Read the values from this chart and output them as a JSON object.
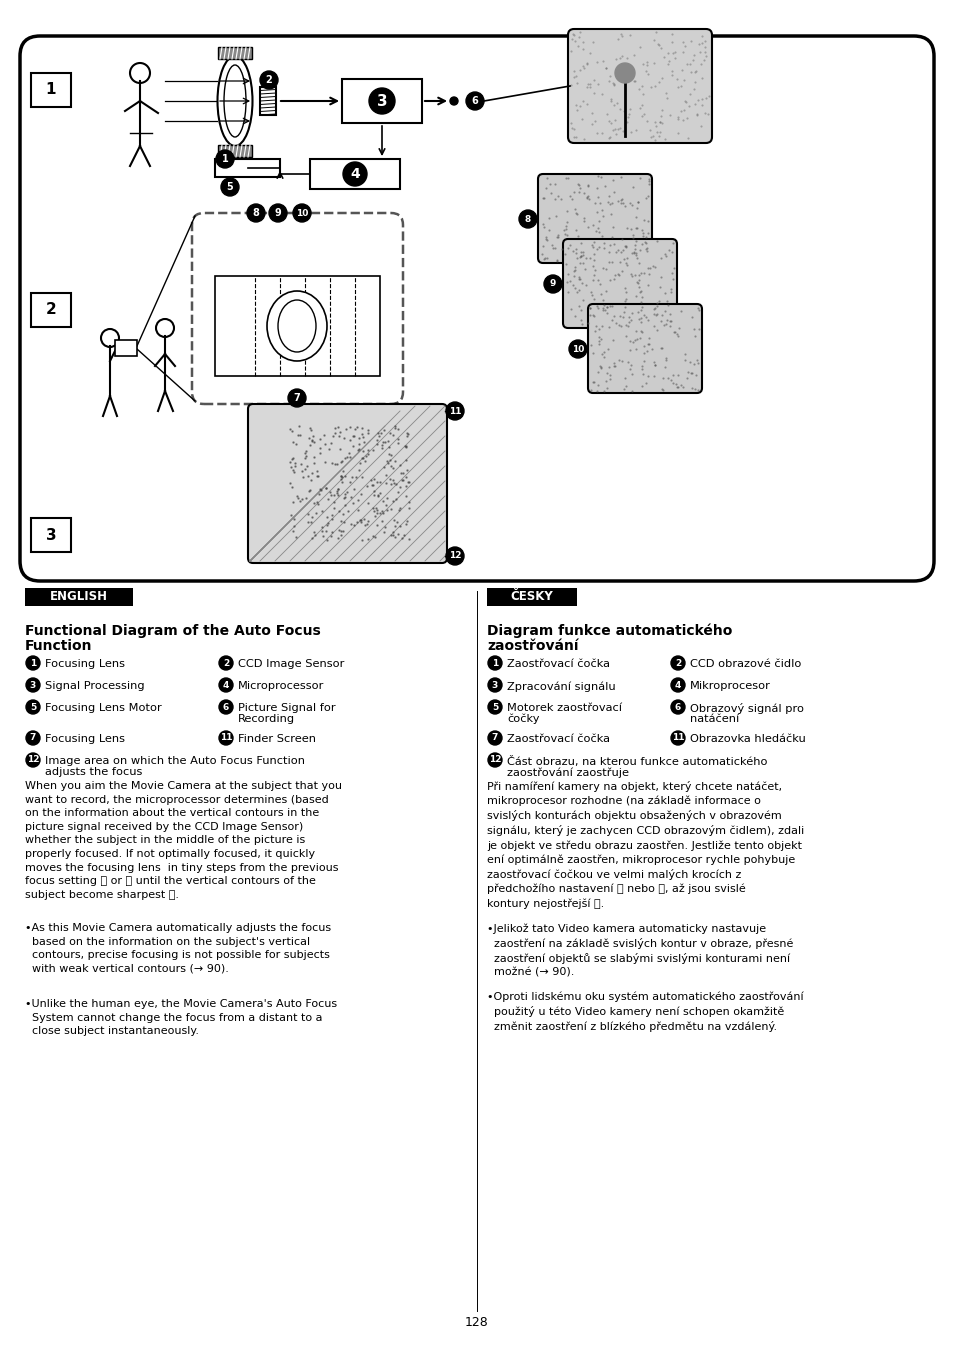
{
  "page_number": "128",
  "bg_color": "#ffffff",
  "english_label": "ENGLISH",
  "czech_label": "ČESKY",
  "english_title1": "Functional Diagram of the Auto Focus",
  "english_title2": "Function",
  "czech_title1": "Diagram funkce automatického",
  "czech_title2": "zaostřování",
  "en_items": [
    [
      "1",
      "Focusing Lens",
      "2",
      "CCD Image Sensor"
    ],
    [
      "3",
      "Signal Processing",
      "4",
      "Microprocessor"
    ],
    [
      "5",
      "Focusing Lens Motor",
      "6",
      "Picture Signal for\nRecording"
    ],
    [
      "7",
      "Focusing Lens",
      "11",
      "Finder Screen"
    ],
    [
      "12",
      "Image area on which the Auto Focus Function\nadjusts the focus",
      "",
      ""
    ]
  ],
  "cz_items": [
    [
      "1",
      "Zaostřovací čočka",
      "2",
      "CCD obrazové čidlo"
    ],
    [
      "3",
      "Zpracování signálu",
      "4",
      "Mikroprocesor"
    ],
    [
      "5",
      "Motorek zaostřovací\nčočky",
      "6",
      "Obrazový signál pro\nnatáčení"
    ],
    [
      "7",
      "Zaostřovací čočka",
      "11",
      "Obrazovka hledáčku"
    ],
    [
      "12",
      "Část obrazu, na kterou funkce automatického\nzaostřování zaostřuje",
      "",
      ""
    ]
  ],
  "en_body": "When you aim the Movie Camera at the subject that you\nwant to record, the microprocessor determines (based\non the information about the vertical contours in the\npicture signal received by the CCD Image Sensor)\nwhether the subject in the middle of the picture is\nproperly focused. If not optimally focused, it quickly\nmoves the focusing lens  in tiny steps from the previous\nfocus setting  or  until the vertical contours of the\nsubject become sharpest  .",
  "en_body_bold_refs": [
    "8",
    "10",
    "9"
  ],
  "en_bullet1": "As this Movie Camera automatically adjusts the focus\nbased on the information on the subject's vertical\ncontours, precise focusing is not possible for subjects\nwith weak vertical contours (→ 90).",
  "en_bullet2": "Unlike the human eye, the Movie Camera's Auto Focus\nSystem cannot change the focus from a distant to a\nclose subject instantaneously.",
  "cz_body": "Při namíření kamery na objekt, který chcete natáčet,\nmikroprocesor rozhodne (na základě informace o\nsvislých konturách objektu obsažených v obrazovém\nsignálu, který je zachycen CCD obrazovým čidlem), zdali\nje objekt ve středu obrazu zaostřen. Jestliže tento objekt\není optimálně zaostřen, mikroprocesor rychle pohybuje\nzaostřovací čočkou ve velmi malých krocích z\npředchožího nastavení  nebo , až jsou svislé\nkontury nejostřejší  .",
  "cz_bullet1": "Jelikož tato Video kamera automaticky nastavuje\nzaostření na základě svislých kontur v obraze, přesné\nzaostření objektů se slabými svislými konturami není\nmožné (→ 90).",
  "cz_bullet2": "Oproti lidskému oku systém automatického zaostřování\npoužitý u této Video kamery není schopen okamžitě\nzměnit zaostření z blízkého předmětu na vzdálený."
}
